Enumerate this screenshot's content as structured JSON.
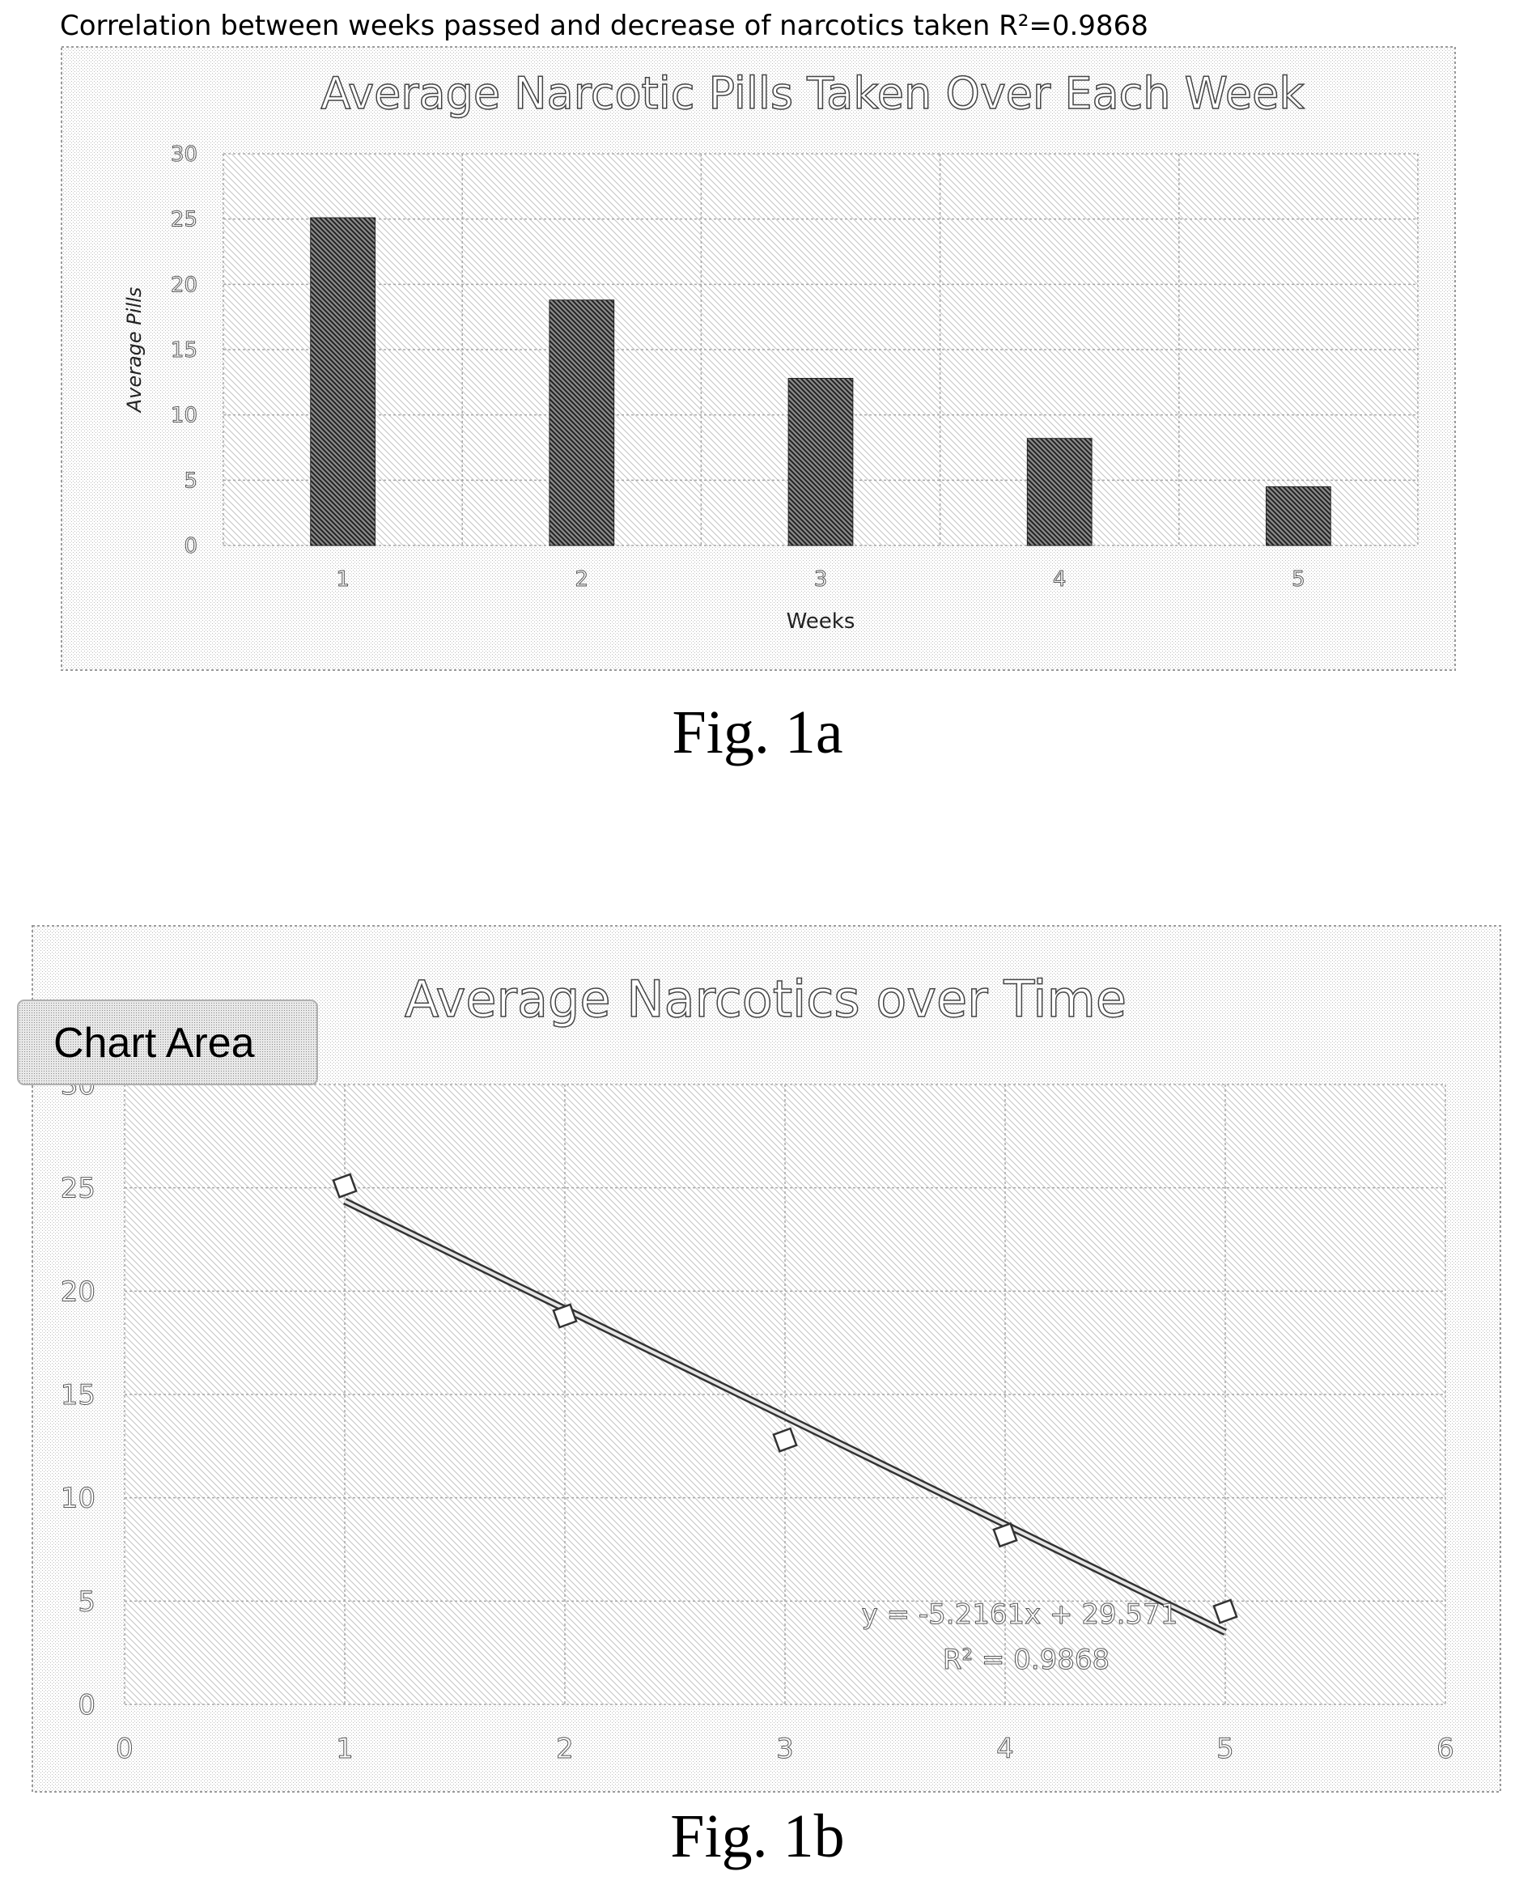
{
  "heading": "Correlation between weeks passed and decrease of narcotics taken R²=0.9868",
  "captions": {
    "fig1a": "Fig. 1a",
    "fig1b": "Fig. 1b"
  },
  "chart_data": [
    {
      "type": "bar",
      "title": "Average Narcotic Pills Taken Over Each Week",
      "xlabel": "Weeks",
      "ylabel": "Average Pills",
      "categories": [
        "1",
        "2",
        "3",
        "4",
        "5"
      ],
      "values": [
        25.1,
        18.8,
        12.8,
        8.2,
        4.5
      ],
      "ylim": [
        0,
        30
      ],
      "yticks": [
        "0",
        "5",
        "10",
        "15",
        "20",
        "25",
        "30"
      ],
      "grid": true,
      "legend": "none"
    },
    {
      "type": "scatter",
      "title": "Average Narcotics over Time",
      "x": [
        1,
        2,
        3,
        4,
        5
      ],
      "y": [
        25.1,
        18.8,
        12.8,
        8.2,
        4.5
      ],
      "xlim": [
        0,
        6
      ],
      "ylim": [
        0,
        30
      ],
      "xticks": [
        "0",
        "1",
        "2",
        "3",
        "4",
        "5",
        "6"
      ],
      "yticks": [
        "0",
        "5",
        "10",
        "15",
        "20",
        "25",
        "30"
      ],
      "trendline": {
        "slope": -5.2161,
        "intercept": 29.571,
        "r_squared": 0.9868
      },
      "trendline_label": [
        "y = -5.2161x + 29.571",
        "R² = 0.9868"
      ],
      "tooltip": "Chart Area",
      "grid": true
    }
  ]
}
